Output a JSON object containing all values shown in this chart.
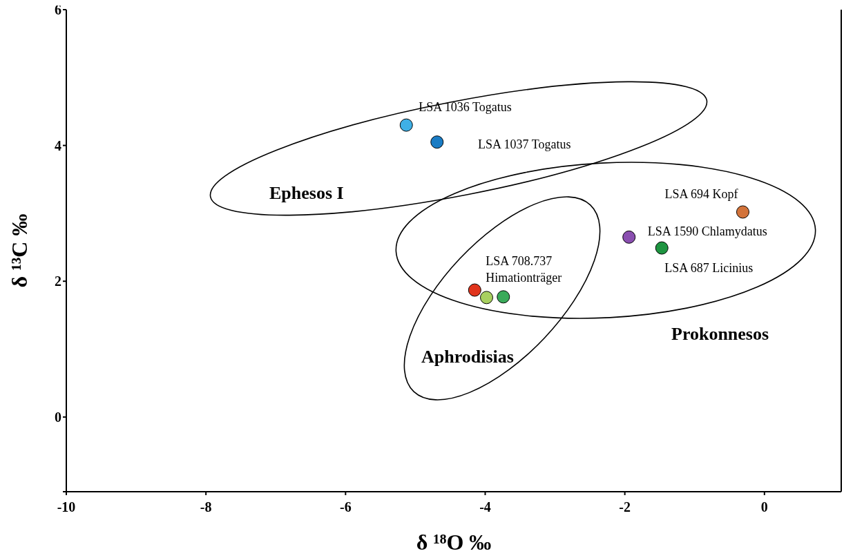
{
  "chart_data": {
    "type": "scatter",
    "xlabel": "δ ¹⁸O ‰",
    "ylabel": "δ ¹³C ‰",
    "xlim": [
      -10,
      1.1
    ],
    "xticks": [
      -10,
      -8,
      -6,
      -4,
      -2,
      0
    ],
    "ylim": [
      -1.1,
      6
    ],
    "yticks": [
      {
        "value": -1.1,
        "label": null
      },
      0,
      2,
      4,
      6
    ],
    "marker": "circle",
    "series": [
      {
        "x": [
          -5.13,
          -4.69,
          -0.31,
          -1.94,
          -1.47,
          -4.15,
          -3.98,
          -3.74
        ],
        "values": [
          4.3,
          4.05,
          3.02,
          2.65,
          2.49,
          1.87,
          1.76,
          1.77
        ],
        "colors": [
          "#3fb0e6",
          "#1a7cc4",
          "#d2733a",
          "#8a4fb0",
          "#1e9440",
          "#e0341c",
          "#a8d060",
          "#3aaa5a"
        ]
      }
    ],
    "annotations": [
      {
        "text": "LSA 1036 Togatus",
        "x": -5.13,
        "y": 4.3
      },
      "LSA 1037 Togatus",
      "Ephesos I",
      {
        "text": "LSA 694 Kopf",
        "x": -0.31,
        "y": 3.02
      },
      {
        "text": "LSA 1590 Chlamydatus",
        "x": -1.94,
        "y": 2.65
      },
      {
        "text": "LSA 687 Licinius",
        "x": -1.47,
        "y": 2.49
      },
      {
        "text": "LSA 708.737\nHimationträger",
        "x": -4.15,
        "y": 1.87
      },
      "Prokonnesos",
      "Aphrodisias"
    ]
  }
}
